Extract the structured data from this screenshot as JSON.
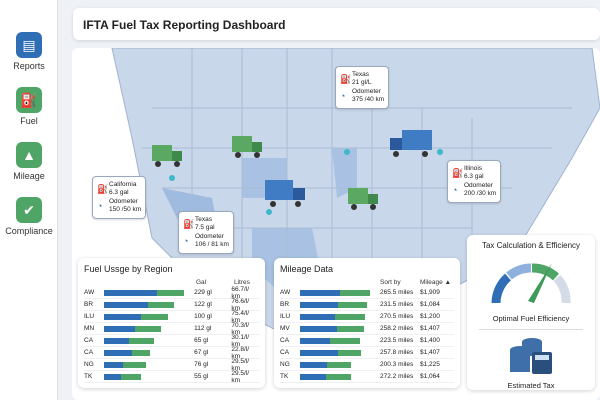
{
  "colors": {
    "blue": "#2f6db5",
    "green": "#4ea566",
    "map": "#c9d7ea"
  },
  "sidebar": {
    "items": [
      {
        "label": "Reports",
        "icon": "document-icon"
      },
      {
        "label": "Fuel",
        "icon": "fuel-pump-icon"
      },
      {
        "label": "Mileage",
        "icon": "road-icon"
      },
      {
        "label": "Compliance",
        "icon": "clipboard-check-icon"
      }
    ]
  },
  "header": {
    "title": "IFTA Fuel Tax Reporting Dashboard"
  },
  "map": {
    "callouts": [
      {
        "state": "California",
        "fuel": "6.3 gal",
        "odo_label": "Odometer",
        "odo": "150 /50 km"
      },
      {
        "state": "Texas",
        "fuel": "7.5 gal",
        "odo_label": "Odometer",
        "odo": "106 / 81 km"
      },
      {
        "state": "Texas",
        "fuel": "21 gl/L",
        "odo_label": "Odometer",
        "odo": "375 /40 km"
      },
      {
        "state": "Illinois",
        "fuel": "6.3 gal",
        "odo_label": "Odometer",
        "odo": "200 /30 km"
      }
    ]
  },
  "fuel_usage": {
    "title": "Fuel Ussge by Region",
    "col1": "Gal",
    "col2": "Litres",
    "rows": [
      {
        "r": "AW",
        "blue": 0.66,
        "green": 1.0,
        "v1": "229 gl",
        "v2": "66.7/l/ km"
      },
      {
        "r": "BR",
        "blue": 0.55,
        "green": 0.88,
        "v1": "122 gl",
        "v2": "76.6/l/ km"
      },
      {
        "r": "ILU",
        "blue": 0.47,
        "green": 0.8,
        "v1": "100 gl",
        "v2": "75.4/l/ km"
      },
      {
        "r": "MN",
        "blue": 0.39,
        "green": 0.71,
        "v1": "112 gl",
        "v2": "70.3/l/ km"
      },
      {
        "r": "CA",
        "blue": 0.31,
        "green": 0.62,
        "v1": "65 gl",
        "v2": "30.1/l/ km"
      },
      {
        "r": "CA",
        "blue": 0.35,
        "green": 0.58,
        "v1": "67 gl",
        "v2": "22.8/l/ km"
      },
      {
        "r": "NG",
        "blue": 0.24,
        "green": 0.53,
        "v1": "76 gl",
        "v2": "29.5/l/ km"
      },
      {
        "r": "TK",
        "blue": 0.22,
        "green": 0.47,
        "v1": "55 gl",
        "v2": "29.5/l/ km"
      }
    ]
  },
  "mileage": {
    "title": "Mileage Data",
    "col1": "Sort by",
    "col2": "Mileage ▲",
    "rows": [
      {
        "r": "AW",
        "blue": 0.57,
        "green": 1.0,
        "v1": "265.5 miles",
        "v2": "$1,909"
      },
      {
        "r": "BR",
        "blue": 0.54,
        "green": 0.96,
        "v1": "231.5 miles",
        "v2": "$1,084"
      },
      {
        "r": "ILU",
        "blue": 0.5,
        "green": 0.93,
        "v1": "270.5 miles",
        "v2": "$1,200"
      },
      {
        "r": "MV",
        "blue": 0.53,
        "green": 0.92,
        "v1": "258.2 miles",
        "v2": "$1,407"
      },
      {
        "r": "CA",
        "blue": 0.43,
        "green": 0.85,
        "v1": "223.5 miles",
        "v2": "$1,400"
      },
      {
        "r": "CA",
        "blue": 0.54,
        "green": 0.87,
        "v1": "257.8 miles",
        "v2": "$1,407"
      },
      {
        "r": "NG",
        "blue": 0.39,
        "green": 0.73,
        "v1": "200.3 miles",
        "v2": "$1,225"
      },
      {
        "r": "TK",
        "blue": 0.37,
        "green": 0.73,
        "v1": "272.2 miles",
        "v2": "$1,064"
      }
    ]
  },
  "tax": {
    "title": "Tax Calculation & Efficiency",
    "gauge_label": "Optimal Fuel Efficiency",
    "estimated_label": "Estimated Tax"
  }
}
